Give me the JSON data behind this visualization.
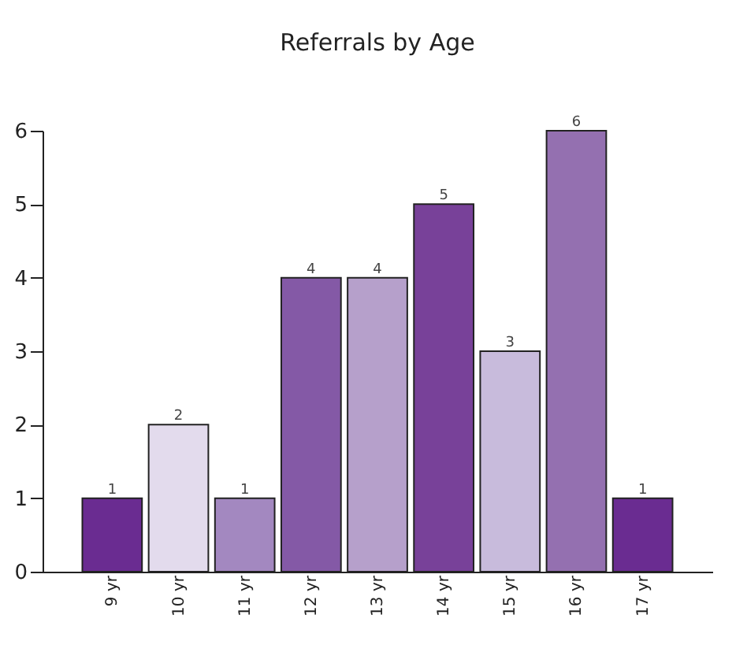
{
  "chart_data": {
    "type": "bar",
    "title": "Referrals by Age",
    "categories": [
      "9 yr",
      "10 yr",
      "11 yr",
      "12 yr",
      "13 yr",
      "14 yr",
      "15 yr",
      "16 yr",
      "17 yr"
    ],
    "values": [
      1,
      2,
      1,
      4,
      4,
      5,
      3,
      6,
      1
    ],
    "colors": [
      "#6a2c91",
      "#e3dbed",
      "#a388c0",
      "#8459a6",
      "#b6a0cb",
      "#784199",
      "#c8bbdc",
      "#9470b0",
      "#6a2c91"
    ],
    "ylim": [
      0,
      6
    ],
    "yticks": [
      0,
      1,
      2,
      3,
      4,
      5,
      6
    ],
    "grid": false,
    "data_labels": true
  }
}
